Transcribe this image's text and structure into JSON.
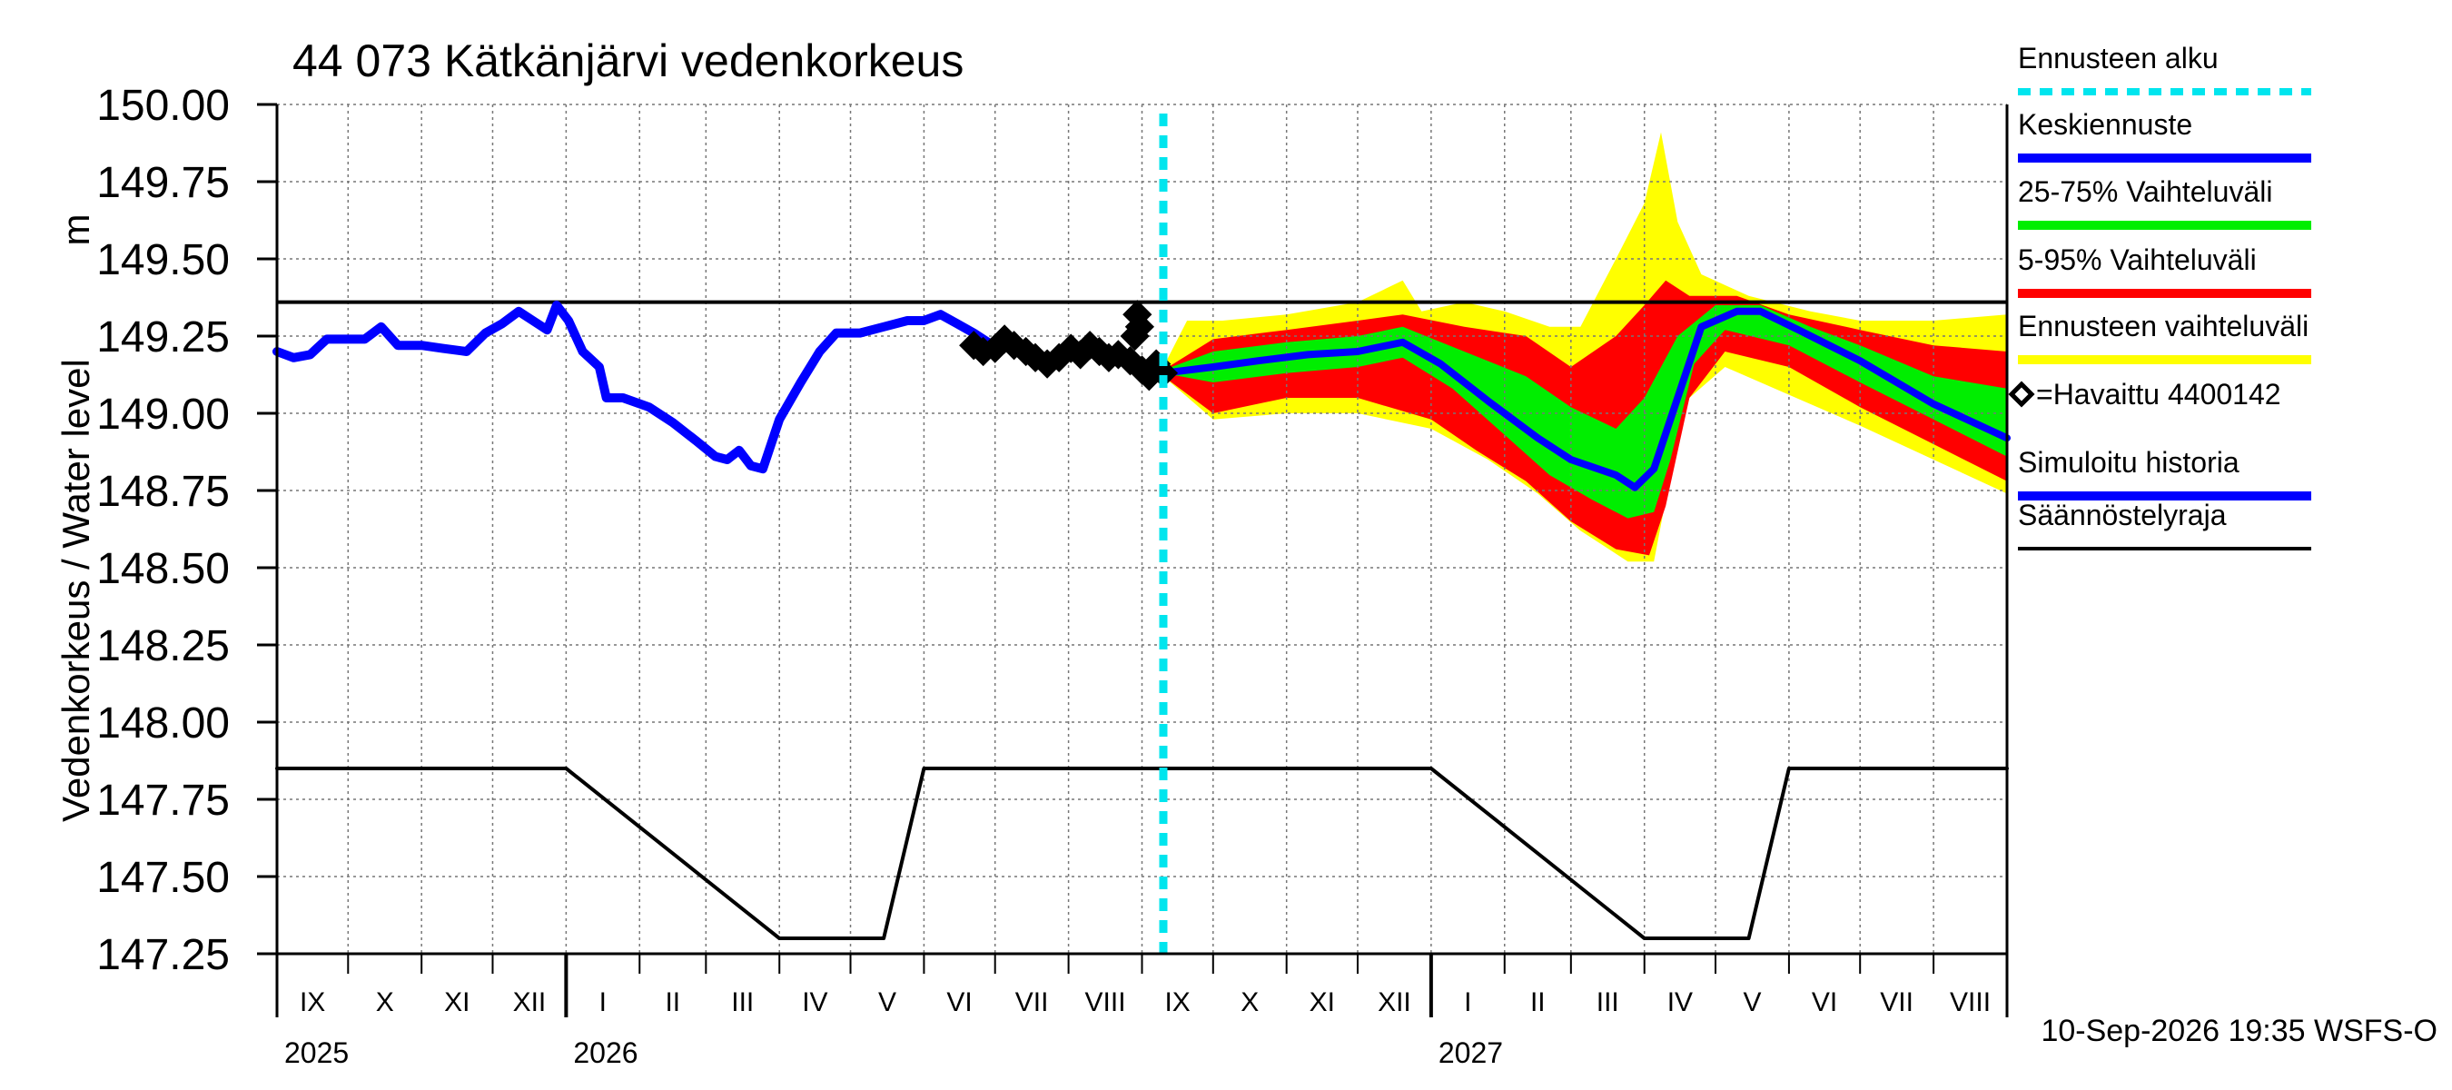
{
  "chart_data": {
    "type": "area",
    "title": "44 073 Kätkänjärvi vedenkorkeus",
    "ylabel": "Vedenkorkeus / Water level",
    "yunit": "m",
    "ylim": [
      147.25,
      150.0
    ],
    "yticks": [
      "150.00",
      "149.75",
      "149.50",
      "149.25",
      "149.00",
      "148.75",
      "148.50",
      "148.25",
      "148.00",
      "147.75",
      "147.50",
      "147.25"
    ],
    "xlim": [
      "2025-09-01",
      "2027-09-01"
    ],
    "months": [
      "IX",
      "X",
      "XI",
      "XII",
      "I",
      "II",
      "III",
      "IV",
      "V",
      "VI",
      "VII",
      "VIII",
      "IX",
      "X",
      "XI",
      "XII",
      "I",
      "II",
      "III",
      "IV",
      "V",
      "VI",
      "VII",
      "VIII"
    ],
    "years": [
      "2025",
      "2026",
      "2027"
    ],
    "footer": "10-Sep-2026 19:35 WSFS-O",
    "grid": true,
    "legend_position": "right",
    "colors": {
      "forecast_start": "#00e5ee",
      "mean": "#0000ff",
      "p25_75": "#00ee00",
      "p5_95": "#ff0000",
      "range": "#ffff00",
      "observed": "#000000",
      "simulated": "#0000ff",
      "limit": "#000000"
    },
    "legend": [
      {
        "key": "forecast_start",
        "label": "Ennusteen alku"
      },
      {
        "key": "mean",
        "label": "Keskiennuste"
      },
      {
        "key": "p25_75",
        "label": "25-75% Vaihteluväli"
      },
      {
        "key": "p5_95",
        "label": "5-95% Vaihteluväli"
      },
      {
        "key": "range",
        "label": "Ennusteen vaihteluväli"
      },
      {
        "key": "observed",
        "label": "=Havaittu 4400142"
      },
      {
        "key": "simulated",
        "label": "Simuloitu historia"
      },
      {
        "key": "limit",
        "label": "Säännöstelyraja"
      }
    ],
    "forecast_start_date": "2026-09-10",
    "upper_limit": 149.36,
    "series": {
      "simulated": [
        [
          "2025-09-01",
          149.2
        ],
        [
          "2025-09-08",
          149.18
        ],
        [
          "2025-09-15",
          149.19
        ],
        [
          "2025-09-22",
          149.24
        ],
        [
          "2025-10-01",
          149.24
        ],
        [
          "2025-10-08",
          149.24
        ],
        [
          "2025-10-15",
          149.28
        ],
        [
          "2025-10-22",
          149.22
        ],
        [
          "2025-11-01",
          149.22
        ],
        [
          "2025-11-10",
          149.21
        ],
        [
          "2025-11-20",
          149.2
        ],
        [
          "2025-11-28",
          149.26
        ],
        [
          "2025-12-05",
          149.29
        ],
        [
          "2025-12-12",
          149.33
        ],
        [
          "2025-12-18",
          149.3
        ],
        [
          "2025-12-24",
          149.27
        ],
        [
          "2025-12-28",
          149.35
        ],
        [
          "2026-01-02",
          149.3
        ],
        [
          "2026-01-08",
          149.2
        ],
        [
          "2026-01-15",
          149.15
        ],
        [
          "2026-01-18",
          149.05
        ],
        [
          "2026-01-25",
          149.05
        ],
        [
          "2026-02-05",
          149.02
        ],
        [
          "2026-02-15",
          148.97
        ],
        [
          "2026-02-25",
          148.91
        ],
        [
          "2026-03-05",
          148.86
        ],
        [
          "2026-03-10",
          148.85
        ],
        [
          "2026-03-15",
          148.88
        ],
        [
          "2026-03-20",
          148.83
        ],
        [
          "2026-03-25",
          148.82
        ],
        [
          "2026-04-01",
          148.98
        ],
        [
          "2026-04-10",
          149.1
        ],
        [
          "2026-04-18",
          149.2
        ],
        [
          "2026-04-25",
          149.26
        ],
        [
          "2026-05-05",
          149.26
        ],
        [
          "2026-05-15",
          149.28
        ],
        [
          "2026-05-25",
          149.3
        ],
        [
          "2026-06-01",
          149.3
        ],
        [
          "2026-06-08",
          149.32
        ],
        [
          "2026-06-15",
          149.29
        ],
        [
          "2026-06-22",
          149.26
        ],
        [
          "2026-06-30",
          149.22
        ]
      ],
      "observed": [
        [
          "2026-06-22",
          149.22
        ],
        [
          "2026-06-26",
          149.2
        ],
        [
          "2026-07-01",
          149.21
        ],
        [
          "2026-07-05",
          149.24
        ],
        [
          "2026-07-09",
          149.22
        ],
        [
          "2026-07-14",
          149.2
        ],
        [
          "2026-07-18",
          149.18
        ],
        [
          "2026-07-23",
          149.16
        ],
        [
          "2026-07-28",
          149.18
        ],
        [
          "2026-08-02",
          149.21
        ],
        [
          "2026-08-06",
          149.19
        ],
        [
          "2026-08-10",
          149.22
        ],
        [
          "2026-08-14",
          149.2
        ],
        [
          "2026-08-18",
          149.18
        ],
        [
          "2026-08-22",
          149.19
        ],
        [
          "2026-08-27",
          149.17
        ],
        [
          "2026-08-29",
          149.25
        ],
        [
          "2026-08-30",
          149.32
        ],
        [
          "2026-08-31",
          149.28
        ],
        [
          "2026-09-01",
          149.14
        ],
        [
          "2026-09-04",
          149.12
        ],
        [
          "2026-09-07",
          149.16
        ],
        [
          "2026-09-10",
          149.13
        ]
      ],
      "mean": [
        [
          "2026-09-10",
          149.13
        ],
        [
          "2026-10-01",
          149.15
        ],
        [
          "2026-10-20",
          149.17
        ],
        [
          "2026-11-10",
          149.19
        ],
        [
          "2026-12-01",
          149.2
        ],
        [
          "2026-12-20",
          149.23
        ],
        [
          "2027-01-05",
          149.16
        ],
        [
          "2027-01-25",
          149.04
        ],
        [
          "2027-02-15",
          148.92
        ],
        [
          "2027-03-01",
          148.85
        ],
        [
          "2027-03-20",
          148.8
        ],
        [
          "2027-03-28",
          148.76
        ],
        [
          "2027-04-05",
          148.82
        ],
        [
          "2027-04-15",
          149.05
        ],
        [
          "2027-04-25",
          149.28
        ],
        [
          "2027-05-10",
          149.33
        ],
        [
          "2027-05-20",
          149.33
        ],
        [
          "2027-06-05",
          149.27
        ],
        [
          "2027-07-01",
          149.17
        ],
        [
          "2027-08-01",
          149.03
        ],
        [
          "2027-09-01",
          148.92
        ]
      ],
      "p25": [
        [
          "2026-09-10",
          149.13
        ],
        [
          "2026-10-01",
          149.1
        ],
        [
          "2026-11-01",
          149.13
        ],
        [
          "2026-12-01",
          149.15
        ],
        [
          "2026-12-20",
          149.18
        ],
        [
          "2027-01-10",
          149.08
        ],
        [
          "2027-02-01",
          148.93
        ],
        [
          "2027-02-20",
          148.8
        ],
        [
          "2027-03-10",
          148.72
        ],
        [
          "2027-03-25",
          148.66
        ],
        [
          "2027-04-05",
          148.68
        ],
        [
          "2027-04-12",
          148.85
        ],
        [
          "2027-04-22",
          149.16
        ],
        [
          "2027-05-05",
          149.27
        ],
        [
          "2027-06-01",
          149.22
        ],
        [
          "2027-07-01",
          149.1
        ],
        [
          "2027-08-01",
          148.98
        ],
        [
          "2027-09-01",
          148.86
        ]
      ],
      "p75": [
        [
          "2026-09-10",
          149.14
        ],
        [
          "2026-10-01",
          149.2
        ],
        [
          "2026-11-01",
          149.23
        ],
        [
          "2026-12-01",
          149.25
        ],
        [
          "2026-12-20",
          149.28
        ],
        [
          "2027-01-15",
          149.2
        ],
        [
          "2027-02-10",
          149.12
        ],
        [
          "2027-03-01",
          149.02
        ],
        [
          "2027-03-20",
          148.95
        ],
        [
          "2027-04-01",
          149.05
        ],
        [
          "2027-04-15",
          149.25
        ],
        [
          "2027-05-01",
          149.35
        ],
        [
          "2027-05-20",
          149.35
        ],
        [
          "2027-06-10",
          149.28
        ],
        [
          "2027-07-01",
          149.22
        ],
        [
          "2027-08-01",
          149.12
        ],
        [
          "2027-09-01",
          149.08
        ]
      ],
      "p5": [
        [
          "2026-09-10",
          149.12
        ],
        [
          "2026-10-01",
          149.0
        ],
        [
          "2026-11-01",
          149.05
        ],
        [
          "2026-12-01",
          149.05
        ],
        [
          "2027-01-01",
          148.98
        ],
        [
          "2027-01-20",
          148.88
        ],
        [
          "2027-02-10",
          148.78
        ],
        [
          "2027-03-01",
          148.65
        ],
        [
          "2027-03-20",
          148.56
        ],
        [
          "2027-04-03",
          148.54
        ],
        [
          "2027-04-10",
          148.7
        ],
        [
          "2027-04-20",
          149.05
        ],
        [
          "2027-05-05",
          149.2
        ],
        [
          "2027-06-01",
          149.15
        ],
        [
          "2027-07-01",
          149.02
        ],
        [
          "2027-08-01",
          148.9
        ],
        [
          "2027-09-01",
          148.78
        ]
      ],
      "p95": [
        [
          "2026-09-10",
          149.14
        ],
        [
          "2026-10-01",
          149.24
        ],
        [
          "2026-11-01",
          149.27
        ],
        [
          "2026-12-01",
          149.3
        ],
        [
          "2026-12-20",
          149.32
        ],
        [
          "2027-01-15",
          149.28
        ],
        [
          "2027-02-10",
          149.25
        ],
        [
          "2027-03-01",
          149.15
        ],
        [
          "2027-03-20",
          149.25
        ],
        [
          "2027-04-01",
          149.35
        ],
        [
          "2027-04-10",
          149.43
        ],
        [
          "2027-04-20",
          149.38
        ],
        [
          "2027-05-10",
          149.38
        ],
        [
          "2027-06-01",
          149.32
        ],
        [
          "2027-07-01",
          149.27
        ],
        [
          "2027-08-01",
          149.22
        ],
        [
          "2027-09-01",
          149.2
        ]
      ],
      "range_low": [
        [
          "2026-09-10",
          149.12
        ],
        [
          "2026-10-01",
          148.98
        ],
        [
          "2026-11-01",
          149.0
        ],
        [
          "2026-12-01",
          149.0
        ],
        [
          "2027-01-01",
          148.95
        ],
        [
          "2027-01-25",
          148.85
        ],
        [
          "2027-02-15",
          148.74
        ],
        [
          "2027-03-05",
          148.62
        ],
        [
          "2027-03-25",
          148.52
        ],
        [
          "2027-04-05",
          148.52
        ],
        [
          "2027-04-12",
          148.8
        ],
        [
          "2027-04-20",
          149.05
        ],
        [
          "2027-05-05",
          149.15
        ],
        [
          "2027-06-01",
          149.06
        ],
        [
          "2027-07-01",
          148.96
        ],
        [
          "2027-08-01",
          148.85
        ],
        [
          "2027-09-01",
          148.74
        ]
      ],
      "range_high": [
        [
          "2026-09-10",
          149.15
        ],
        [
          "2026-09-20",
          149.3
        ],
        [
          "2026-10-05",
          149.3
        ],
        [
          "2026-11-01",
          149.32
        ],
        [
          "2026-12-01",
          149.36
        ],
        [
          "2026-12-20",
          149.43
        ],
        [
          "2026-12-28",
          149.33
        ],
        [
          "2027-01-15",
          149.36
        ],
        [
          "2027-02-01",
          149.33
        ],
        [
          "2027-02-20",
          149.28
        ],
        [
          "2027-03-05",
          149.28
        ],
        [
          "2027-03-20",
          149.5
        ],
        [
          "2027-04-01",
          149.68
        ],
        [
          "2027-04-08",
          149.91
        ],
        [
          "2027-04-15",
          149.62
        ],
        [
          "2027-04-25",
          149.45
        ],
        [
          "2027-05-15",
          149.38
        ],
        [
          "2027-06-10",
          149.33
        ],
        [
          "2027-07-01",
          149.3
        ],
        [
          "2027-08-01",
          149.3
        ],
        [
          "2027-09-01",
          149.32
        ]
      ],
      "limit": [
        [
          "2025-09-01",
          147.85
        ],
        [
          "2026-01-01",
          147.85
        ],
        [
          "2026-04-01",
          147.3
        ],
        [
          "2026-05-15",
          147.3
        ],
        [
          "2026-06-01",
          147.85
        ],
        [
          "2027-01-01",
          147.85
        ],
        [
          "2027-04-01",
          147.3
        ],
        [
          "2027-05-15",
          147.3
        ],
        [
          "2027-06-01",
          147.85
        ],
        [
          "2027-09-01",
          147.85
        ]
      ]
    }
  }
}
